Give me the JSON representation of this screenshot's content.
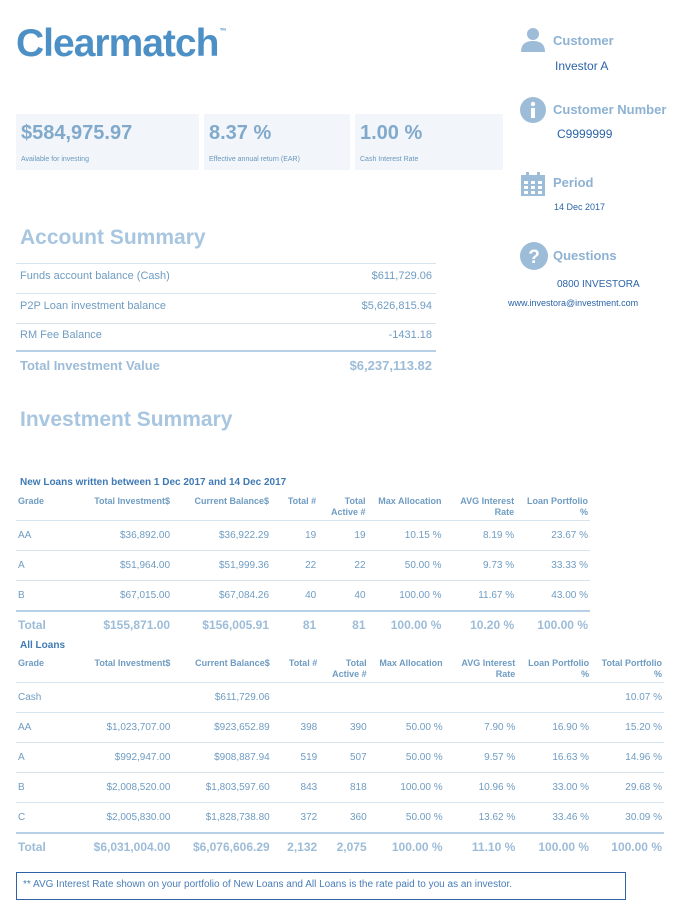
{
  "brand": {
    "name_part1": "Clear",
    "name_part2": "match",
    "trademark": "™"
  },
  "kpis": [
    {
      "value": "$584,975.97",
      "label": "Available for investing"
    },
    {
      "value": "8.37 %",
      "label": "Effective annual return (EAR)"
    },
    {
      "value": "1.00 %",
      "label": "Cash Interest Rate"
    }
  ],
  "sidebar": {
    "customer": {
      "label": "Customer",
      "value": "Investor A"
    },
    "customer_number": {
      "label": "Customer Number",
      "value": "C9999999"
    },
    "period": {
      "label": "Period",
      "value": "14 Dec 2017"
    },
    "questions": {
      "label": "Questions",
      "phone": "0800 INVESTORA",
      "email": "www.investora@investment.com"
    }
  },
  "account_summary": {
    "title": "Account Summary",
    "rows": [
      {
        "label": "Funds account balance (Cash)",
        "value": "$611,729.06"
      },
      {
        "label": "P2P Loan investment balance",
        "value": "$5,626,815.94"
      },
      {
        "label": "RM Fee Balance",
        "value": "-1431.18"
      }
    ],
    "total": {
      "label": "Total Investment Value",
      "value": "$6,237,113.82"
    }
  },
  "investment_summary": {
    "title": "Investment Summary",
    "new_loans": {
      "subtitle": "New Loans written between 1 Dec 2017 and 14 Dec 2017",
      "headers": [
        "Grade",
        "Total Investment$",
        "Current Balance$",
        "Total #",
        "Total Active #",
        "Max Allocation",
        "AVG Interest Rate",
        "Loan Portfolio %"
      ],
      "rows": [
        [
          "AA",
          "$36,892.00",
          "$36,922.29",
          "19",
          "19",
          "10.15 %",
          "8.19 %",
          "23.67 %"
        ],
        [
          "A",
          "$51,964.00",
          "$51,999.36",
          "22",
          "22",
          "50.00 %",
          "9.73 %",
          "33.33 %"
        ],
        [
          "B",
          "$67,015.00",
          "$67,084.26",
          "40",
          "40",
          "100.00 %",
          "11.67 %",
          "43.00 %"
        ]
      ],
      "total": [
        "Total",
        "$155,871.00",
        "$156,005.91",
        "81",
        "81",
        "100.00 %",
        "10.20 %",
        "100.00 %"
      ]
    },
    "all_loans": {
      "subtitle": "All Loans",
      "headers": [
        "Grade",
        "Total Investment$",
        "Current Balance$",
        "Total #",
        "Total Active #",
        "Max Allocation",
        "AVG Interest Rate",
        "Loan Portfolio %",
        "Total Portfolio %"
      ],
      "rows": [
        [
          "Cash",
          "",
          "$611,729.06",
          "",
          "",
          "",
          "",
          "",
          "10.07 %"
        ],
        [
          "AA",
          "$1,023,707.00",
          "$923,652.89",
          "398",
          "390",
          "50.00 %",
          "7.90 %",
          "16.90 %",
          "15.20 %"
        ],
        [
          "A",
          "$992,947.00",
          "$908,887.94",
          "519",
          "507",
          "50.00 %",
          "9.57 %",
          "16.63 %",
          "14.96 %"
        ],
        [
          "B",
          "$2,008,520.00",
          "$1,803,597.60",
          "843",
          "818",
          "100.00 %",
          "10.96 %",
          "33.00 %",
          "29.68 %"
        ],
        [
          "C",
          "$2,005,830.00",
          "$1,828,738.80",
          "372",
          "360",
          "50.00 %",
          "13.62 %",
          "33.46 %",
          "30.09 %"
        ]
      ],
      "total": [
        "Total",
        "$6,031,004.00",
        "$6,076,606.29",
        "2,132",
        "2,075",
        "100.00 %",
        "11.10 %",
        "100.00 %",
        "100.00 %"
      ]
    }
  },
  "footnote": "**  AVG Interest Rate shown on your portfolio of New Loans and All Loans is the rate paid to you as an investor."
}
